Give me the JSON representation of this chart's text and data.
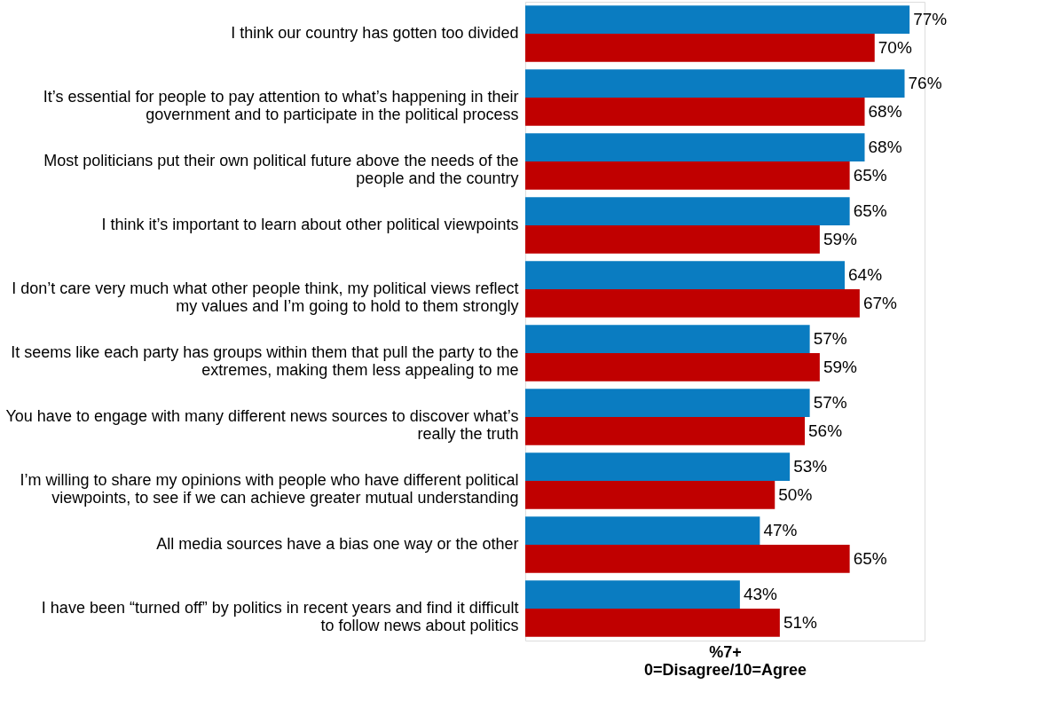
{
  "chart_data": {
    "type": "bar",
    "orientation": "horizontal",
    "xlabel": "%7+\n0=Disagree/10=Agree",
    "grid": false,
    "legend": false,
    "categories": [
      "I think our country has gotten too divided",
      "It’s essential for people to pay attention to what’s happening in their government and to participate in the political process",
      "Most politicians put their own political future above the needs of the people and the country",
      "I think it’s important to learn about other political viewpoints",
      "I don’t care very much what other people think, my political views reflect my values and I’m going to hold to them strongly",
      "It seems like each party has groups within them that pull the party to the extremes, making them less appealing to me",
      "You have to engage with many different news sources to discover what’s really the truth",
      "I’m willing to share my opinions with people who have different political viewpoints, to see if we can achieve greater mutual understanding",
      "All media sources have a bias one way or the other",
      "I have been “turned off” by politics in recent years and find it difficult to follow news about politics"
    ],
    "series": [
      {
        "color": "#0a7cc1",
        "values": [
          77,
          76,
          68,
          65,
          64,
          57,
          57,
          53,
          47,
          43
        ],
        "value_labels": [
          "77%",
          "76%",
          "68%",
          "65%",
          "64%",
          "57%",
          "57%",
          "53%",
          "47%",
          "43%"
        ]
      },
      {
        "color": "#c00000",
        "values": [
          70,
          68,
          65,
          59,
          67,
          59,
          56,
          50,
          65,
          51
        ],
        "value_labels": [
          "70%",
          "68%",
          "65%",
          "59%",
          "67%",
          "59%",
          "56%",
          "50%",
          "65%",
          "51%"
        ]
      }
    ]
  }
}
